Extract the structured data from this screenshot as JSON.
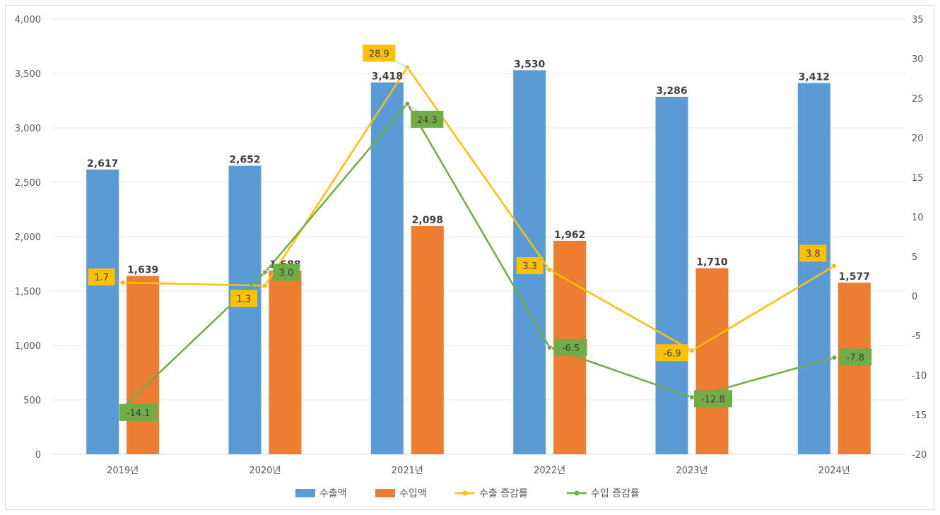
{
  "chart_data": {
    "type": "bar",
    "categories": [
      "2019년",
      "2020년",
      "2021년",
      "2022년",
      "2023년",
      "2024년"
    ],
    "series": [
      {
        "name": "수출액",
        "kind": "bar",
        "axis": "left",
        "color": "#5b9bd5",
        "values": [
          2617,
          2652,
          3418,
          3530,
          3286,
          3412
        ],
        "labels": [
          "2,617",
          "2,652",
          "3,418",
          "3,530",
          "3,286",
          "3,412"
        ]
      },
      {
        "name": "수입액",
        "kind": "bar",
        "axis": "left",
        "color": "#ed7d31",
        "values": [
          1639,
          1688,
          2098,
          1962,
          1710,
          1577
        ],
        "labels": [
          "1,639",
          "1,688",
          "2,098",
          "1,962",
          "1,710",
          "1,577"
        ]
      },
      {
        "name": "수출 증감률",
        "kind": "line",
        "axis": "right",
        "color": "#ffc000",
        "values": [
          1.7,
          1.3,
          28.9,
          3.3,
          -6.9,
          3.8
        ],
        "labels": [
          "1.7",
          "1.3",
          "28.9",
          "3.3",
          "-6.9",
          "3.8"
        ]
      },
      {
        "name": "수입 증감률",
        "kind": "line",
        "axis": "right",
        "color": "#70ad47",
        "values": [
          -14.1,
          3.0,
          24.3,
          -6.5,
          -12.8,
          -7.8
        ],
        "labels": [
          "-14.1",
          "3.0",
          "24.3",
          "-6.5",
          "-12.8",
          "-7.8"
        ]
      }
    ],
    "left_axis": {
      "ylim": [
        0,
        4000
      ],
      "ticks": [
        "0",
        "500",
        "1,000",
        "1,500",
        "2,000",
        "2,500",
        "3,000",
        "3,500",
        "4,000"
      ]
    },
    "right_axis": {
      "ylim": [
        -20,
        35
      ],
      "ticks": [
        "-20",
        "-15",
        "-10",
        "-5",
        "0",
        "5",
        "10",
        "15",
        "20",
        "25",
        "30",
        "35"
      ]
    },
    "grid": true,
    "legend_position": "bottom"
  }
}
